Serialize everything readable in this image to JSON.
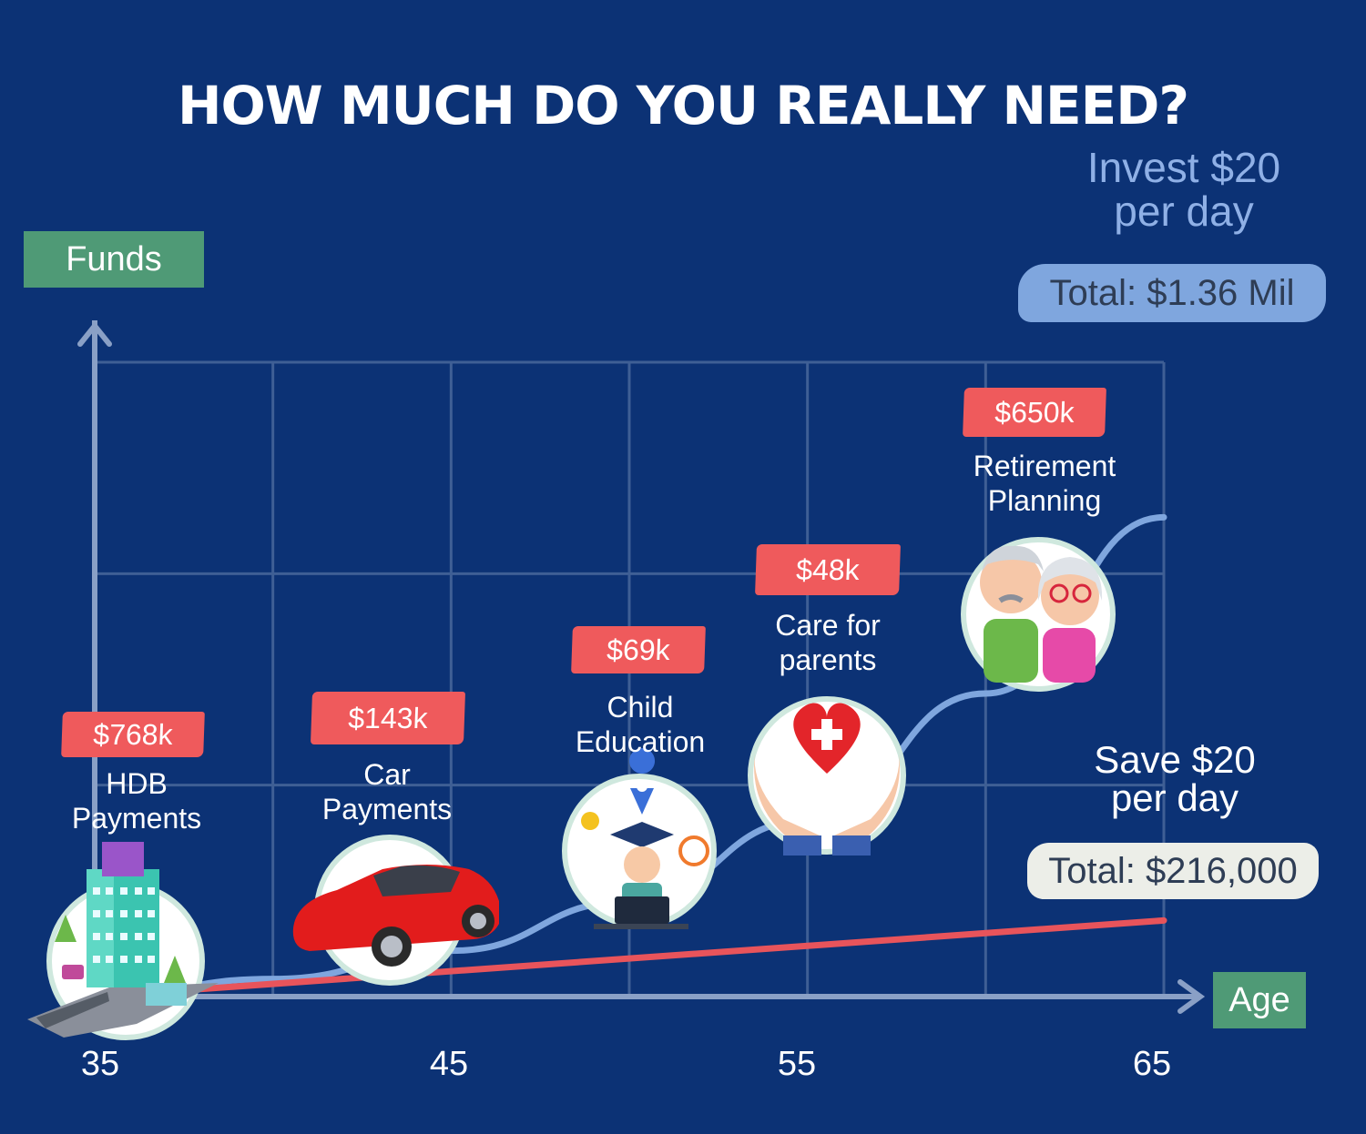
{
  "title": "HOW MUCH DO YOU REALLY NEED?",
  "colors": {
    "background": "#0c3275",
    "invest_line": "#7fa6de",
    "save_line": "#e8545b",
    "badge": "#ef5a5c",
    "axis_label_box": "#4f9a76",
    "grid": "#3f5f95"
  },
  "axis": {
    "y_label": "Funds",
    "x_label": "Age"
  },
  "invest_note": "Invest $20\nper day",
  "invest_total": "Total: $1.36 Mil",
  "save_note": "Save $20\nper day",
  "save_total": "Total: $216,000",
  "milestones": [
    {
      "amount": "$768k",
      "label": "HDB\nPayments",
      "icon": "building-icon"
    },
    {
      "amount": "$143k",
      "label": "Car\nPayments",
      "icon": "car-icon"
    },
    {
      "amount": "$69k",
      "label": "Child\nEducation",
      "icon": "graduate-icon"
    },
    {
      "amount": "$48k",
      "label": "Care for\nparents",
      "icon": "heart-hands-icon"
    },
    {
      "amount": "$650k",
      "label": "Retirement\nPlanning",
      "icon": "elderly-couple-icon"
    }
  ],
  "chart_data": {
    "type": "line",
    "title": "HOW MUCH DO YOU REALLY NEED?",
    "xlabel": "Age",
    "ylabel": "Funds",
    "x_ticks": [
      35,
      45,
      55,
      65
    ],
    "xlim": [
      35,
      65
    ],
    "ylim": [
      0,
      1.8
    ],
    "grid": true,
    "series": [
      {
        "name": "Invest $20 per day",
        "x": [
          35,
          40,
          45,
          50,
          55,
          60,
          65
        ],
        "y": [
          0.0,
          0.05,
          0.13,
          0.27,
          0.5,
          0.86,
          1.36
        ]
      },
      {
        "name": "Save $20 per day",
        "x": [
          35,
          65
        ],
        "y": [
          0.0,
          0.216
        ]
      }
    ]
  }
}
